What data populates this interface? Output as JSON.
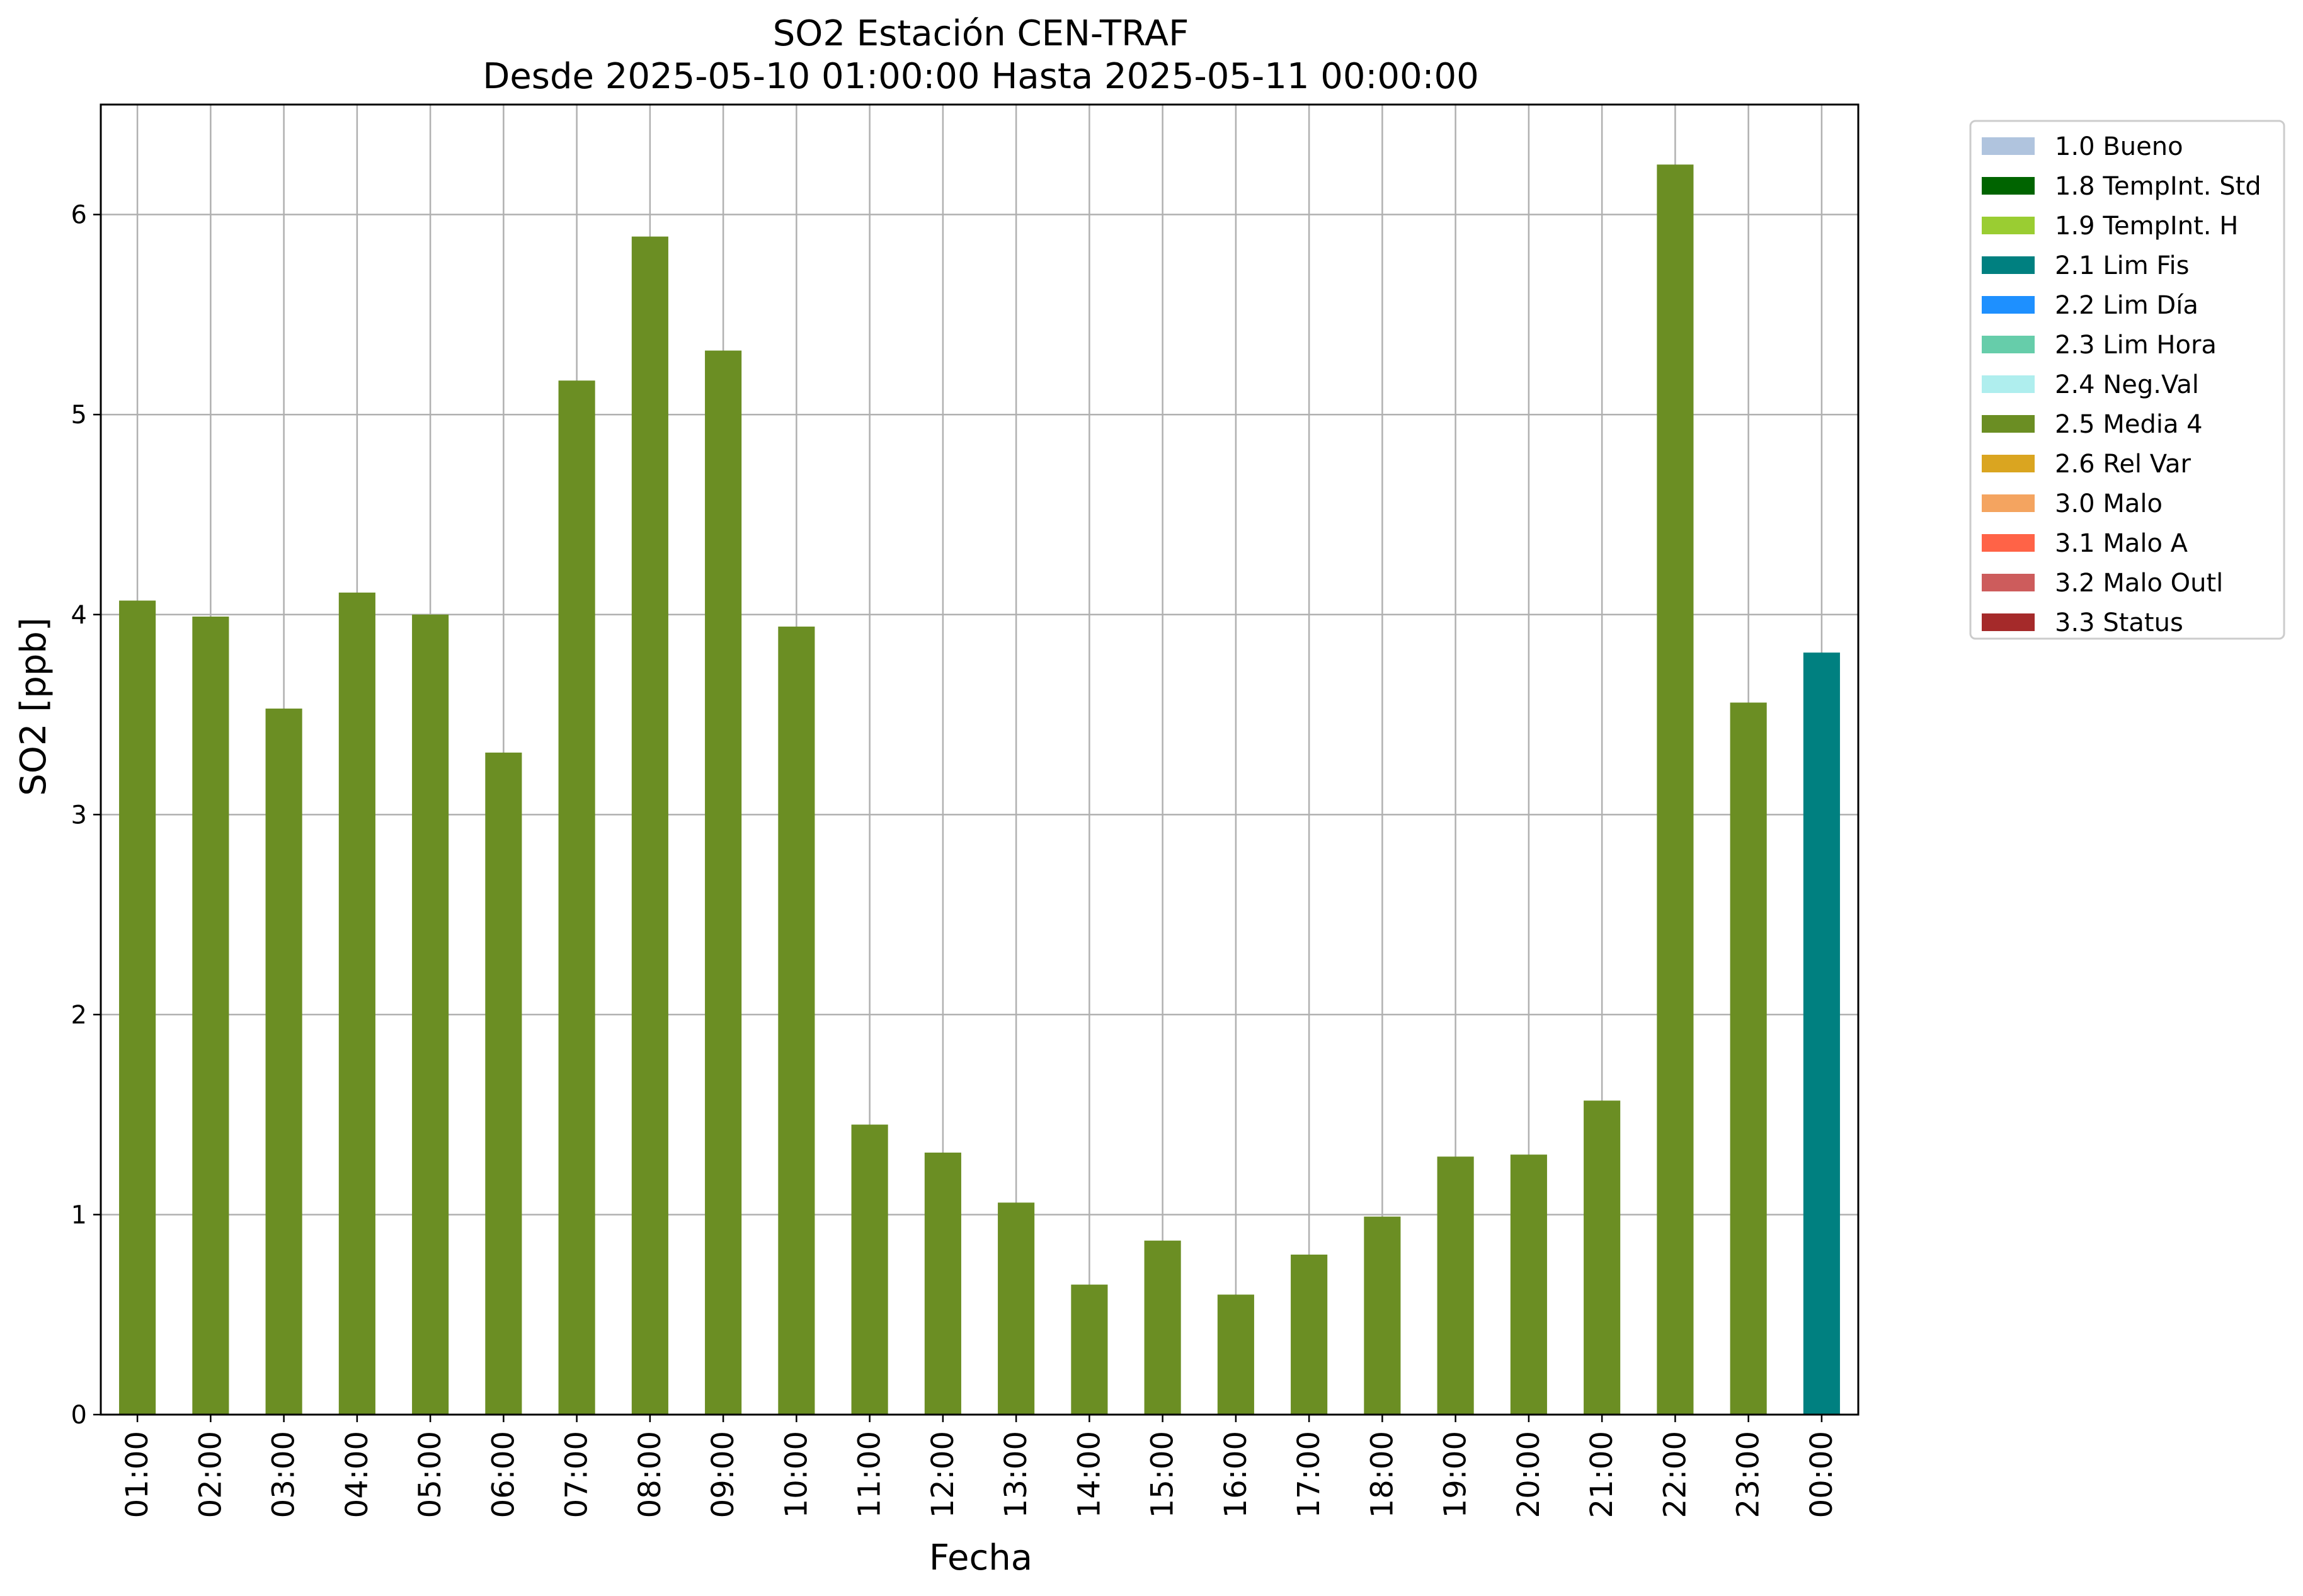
{
  "chart_data": {
    "type": "bar",
    "title": "SO2 Estación CEN-TRAF",
    "subtitle": "Desde 2025-05-10 01:00:00 Hasta 2025-05-11 00:00:00",
    "xlabel": "Fecha",
    "ylabel": "SO2 [ppb]",
    "ylim": [
      0,
      6.55
    ],
    "yticks": [
      "0",
      "1",
      "2",
      "3",
      "4",
      "5",
      "6"
    ],
    "grid": true,
    "legend_position": "outside-right-top",
    "categories": [
      "01:00",
      "02:00",
      "03:00",
      "04:00",
      "05:00",
      "06:00",
      "07:00",
      "08:00",
      "09:00",
      "10:00",
      "11:00",
      "12:00",
      "13:00",
      "14:00",
      "15:00",
      "16:00",
      "17:00",
      "18:00",
      "19:00",
      "20:00",
      "21:00",
      "22:00",
      "23:00",
      "00:00"
    ],
    "values": [
      4.07,
      3.99,
      3.53,
      4.11,
      4.0,
      3.31,
      5.17,
      5.89,
      5.32,
      3.94,
      1.45,
      1.31,
      1.06,
      0.65,
      0.87,
      0.6,
      0.8,
      0.99,
      1.29,
      1.3,
      1.57,
      6.25,
      3.56,
      3.81
    ],
    "bar_flags": [
      "2.5 Media 4",
      "2.5 Media 4",
      "2.5 Media 4",
      "2.5 Media 4",
      "2.5 Media 4",
      "2.5 Media 4",
      "2.5 Media 4",
      "2.5 Media 4",
      "2.5 Media 4",
      "2.5 Media 4",
      "2.5 Media 4",
      "2.5 Media 4",
      "2.5 Media 4",
      "2.5 Media 4",
      "2.5 Media 4",
      "2.5 Media 4",
      "2.5 Media 4",
      "2.5 Media 4",
      "2.5 Media 4",
      "2.5 Media 4",
      "2.5 Media 4",
      "2.5 Media 4",
      "2.5 Media 4",
      "2.1 Lim Fis"
    ],
    "legend": [
      {
        "label": "1.0 Bueno",
        "color": "#b0c4de"
      },
      {
        "label": "1.8 TempInt. Std",
        "color": "#006400"
      },
      {
        "label": "1.9 TempInt. H",
        "color": "#9acd32"
      },
      {
        "label": "2.1 Lim Fis",
        "color": "#008080"
      },
      {
        "label": "2.2 Lim Día",
        "color": "#1e90ff"
      },
      {
        "label": "2.3 Lim Hora",
        "color": "#66cdaa"
      },
      {
        "label": "2.4 Neg.Val",
        "color": "#afeeee"
      },
      {
        "label": "2.5 Media 4",
        "color": "#6b8e23"
      },
      {
        "label": "2.6 Rel Var",
        "color": "#daa520"
      },
      {
        "label": "3.0 Malo",
        "color": "#f4a460"
      },
      {
        "label": "3.1 Malo A",
        "color": "#ff6347"
      },
      {
        "label": "3.2 Malo Outl",
        "color": "#cd5c5c"
      },
      {
        "label": "3.3 Status",
        "color": "#a52a2a"
      }
    ]
  }
}
